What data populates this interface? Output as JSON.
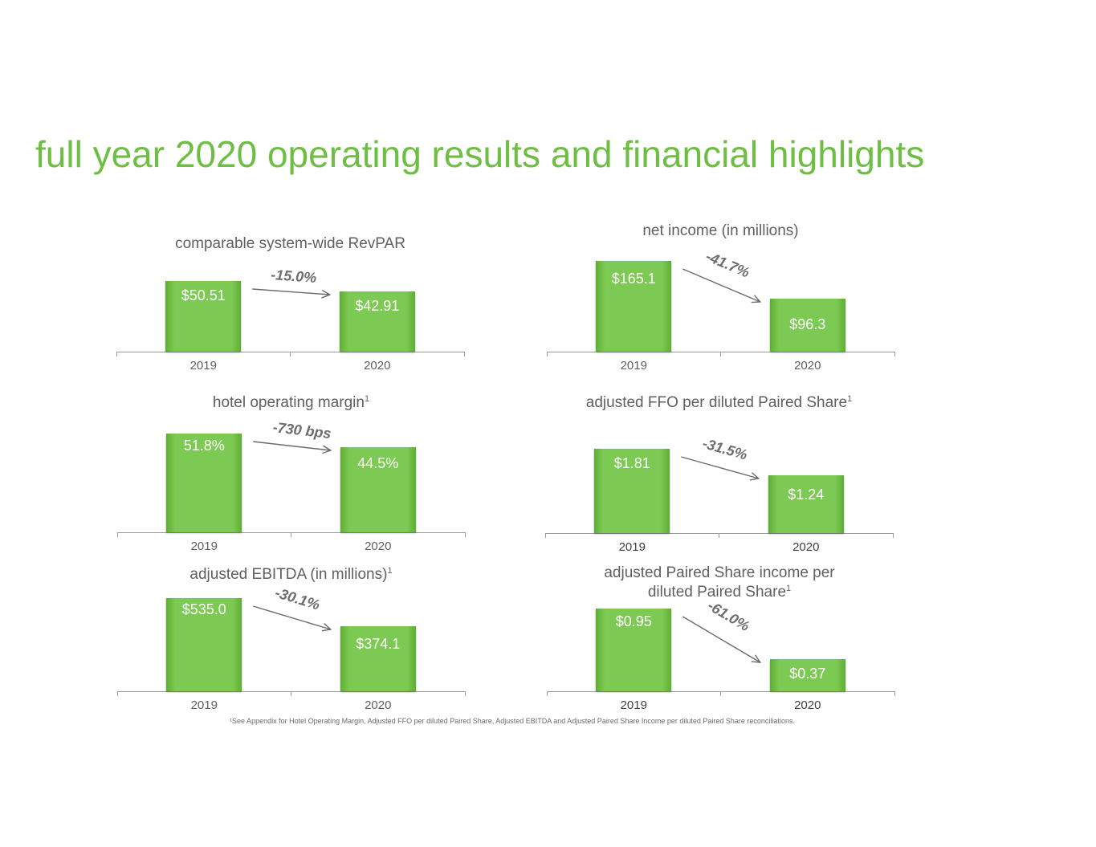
{
  "title": "full year 2020 operating results and financial highlights",
  "footnote": "¹See Appendix for Hotel Operating Margin, Adjusted FFO per diluted Paired Share, Adjusted EBITDA and Adjusted Paired Share Income per diluted Paired Share reconciliations.",
  "colors": {
    "accent": "#6fbe44",
    "bar": "#7cc954",
    "text": "#5f5f5f"
  },
  "chart_data": [
    {
      "type": "bar",
      "title": "comparable system-wide RevPAR",
      "title_sup": "",
      "categories": [
        "2019",
        "2020"
      ],
      "values": [
        50.51,
        42.91
      ],
      "data_labels": [
        "$50.51",
        "$42.91"
      ],
      "change": "-15.0%"
    },
    {
      "type": "bar",
      "title": "net income (in millions)",
      "title_sup": "",
      "categories": [
        "2019",
        "2020"
      ],
      "values": [
        165.1,
        96.3
      ],
      "data_labels": [
        "$165.1",
        "$96.3"
      ],
      "change": "-41.7%"
    },
    {
      "type": "bar",
      "title": "hotel operating margin",
      "title_sup": "1",
      "categories": [
        "2019",
        "2020"
      ],
      "values": [
        51.8,
        44.5
      ],
      "data_labels": [
        "51.8%",
        "44.5%"
      ],
      "change": "-730 bps"
    },
    {
      "type": "bar",
      "title": "adjusted FFO per diluted Paired Share",
      "title_sup": "1",
      "categories": [
        "2019",
        "2020"
      ],
      "values": [
        1.81,
        1.24
      ],
      "data_labels": [
        "$1.81",
        "$1.24"
      ],
      "change": "-31.5%"
    },
    {
      "type": "bar",
      "title": "adjusted EBITDA (in millions)",
      "title_sup": "1",
      "categories": [
        "2019",
        "2020"
      ],
      "values": [
        535.0,
        374.1
      ],
      "data_labels": [
        "$535.0",
        "$374.1"
      ],
      "change": "-30.1%"
    },
    {
      "type": "bar",
      "title": "adjusted Paired Share income per diluted Paired Share",
      "title_sup": "1",
      "categories": [
        "2019",
        "2020"
      ],
      "values": [
        0.95,
        0.37
      ],
      "data_labels": [
        "$0.95",
        "$0.37"
      ],
      "change": "-61.0%"
    }
  ]
}
